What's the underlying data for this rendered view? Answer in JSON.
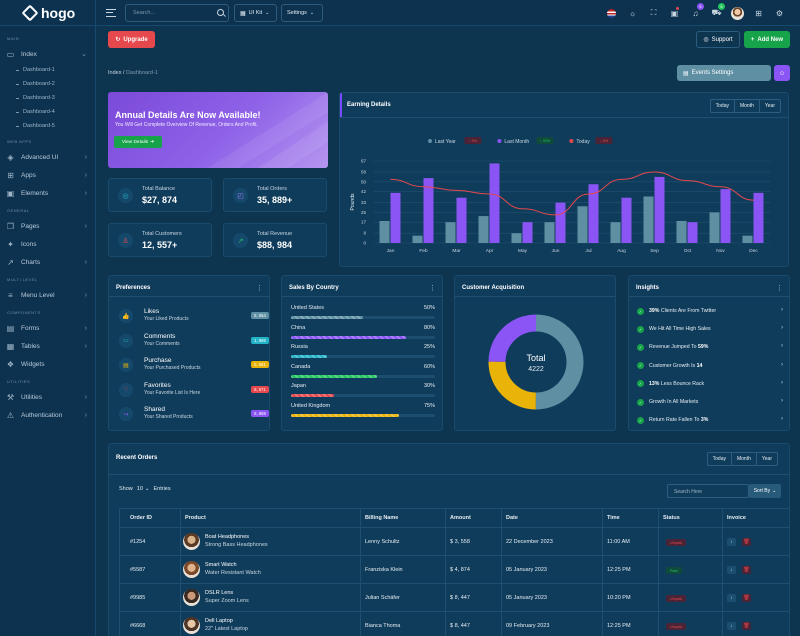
{
  "brand": {
    "name": "hogo"
  },
  "sidebar": {
    "sections": {
      "main": "MAIN",
      "web_apps": "WEB APPS",
      "general": "GENERAL",
      "multi_level": "MULTI LEVEL",
      "components": "COMPONENTS",
      "utilities": "UTILITIES"
    },
    "index": "Index",
    "sub": [
      "Dashboard-1",
      "Dashboard-2",
      "Dashboard-3",
      "Dashboard-4",
      "Dashboard-5"
    ],
    "advanced_ui": "Advanced UI",
    "apps": "Apps",
    "elements": "Elements",
    "pages": "Pages",
    "icons": "Icons",
    "charts": "Charts",
    "menu_level": "Menu Level",
    "forms": "Forms",
    "tables": "Tables",
    "widgets": "Widgets",
    "utilities": "Utilities",
    "authentication": "Authentication"
  },
  "header": {
    "search_placeholder": "Search...",
    "ui_kit": "UI Kit",
    "settings": "Settings",
    "notif_count": "5",
    "cart_count": "5"
  },
  "toolbar": {
    "upgrade": "Upgrade",
    "support": "Support",
    "add_new": "Add New",
    "events_settings": "Events Settings"
  },
  "breadcrumb": {
    "root": "Index",
    "sep": "/",
    "current": "Dashboard-1"
  },
  "promo": {
    "title": "Annual Details Are Now Available!",
    "subtitle": "You Will Get Complete Overview Of Revenue, Orders And Profit.",
    "button": "View Details"
  },
  "stats": [
    {
      "label": "Total Balance",
      "value": "$27, 874",
      "icon": "wallet-icon",
      "color": "#22b3c7"
    },
    {
      "label": "Total Orders",
      "value": "35, 889+",
      "icon": "bag-icon",
      "color": "#a77bff"
    },
    {
      "label": "Total Customers",
      "value": "12, 557+",
      "icon": "users-icon",
      "color": "#e5484d"
    },
    {
      "label": "Total Revenue",
      "value": "$88, 984",
      "icon": "trend-icon",
      "color": "#22c55e"
    }
  ],
  "earning": {
    "title": "Earning Details",
    "ranges": [
      "Today",
      "Month",
      "Year"
    ]
  },
  "chart_data": {
    "type": "bar",
    "title": "",
    "ylabel": "Pounds",
    "xlabel": "",
    "ylim": [
      0,
      67
    ],
    "yticks": [
      "0",
      "8",
      "17",
      "25",
      "33",
      "42",
      "50",
      "58",
      "67"
    ],
    "categories": [
      "Jan",
      "Feb",
      "Mar",
      "Apr",
      "May",
      "Jun",
      "Jul",
      "Aug",
      "Sep",
      "Oct",
      "Nov",
      "Dec"
    ],
    "legend_position": "top",
    "grid": true,
    "series": [
      {
        "name": "Last Year",
        "type": "bar",
        "color": "#5e8fa3",
        "values": [
          18,
          6,
          17,
          22,
          8,
          17,
          30,
          17,
          38,
          18,
          25,
          6
        ],
        "change": "5%",
        "change_color": "#e5484d"
      },
      {
        "name": "Last Month",
        "type": "bar",
        "color": "#8b55f5",
        "values": [
          41,
          53,
          37,
          65,
          17,
          33,
          48,
          37,
          54,
          17,
          44,
          41
        ],
        "change": "33%",
        "change_color": "#22c55e"
      },
      {
        "name": "Today",
        "type": "line",
        "color": "#e5484d",
        "values": [
          52,
          46,
          43,
          40,
          28,
          23,
          40,
          52,
          58,
          51,
          46,
          35
        ],
        "change": "5%",
        "change_color": "#e5484d"
      }
    ]
  },
  "preferences": {
    "title": "Preferences",
    "items": [
      {
        "title": "Likes",
        "sub": "Your Liked Products",
        "badge": "5, 554",
        "color": "#5e8fa3",
        "icon": "thumbs-up-icon"
      },
      {
        "title": "Comments",
        "sub": "Your Comments",
        "badge": "1, 886",
        "color": "#22b3c7",
        "icon": "comment-icon"
      },
      {
        "title": "Purchase",
        "sub": "Your Purchased Products",
        "badge": "5, 561",
        "color": "#eab308",
        "icon": "cart-icon"
      },
      {
        "title": "Favorites",
        "sub": "Your Favorite List Is Here",
        "badge": "5, 571",
        "color": "#e5484d",
        "icon": "heart-icon"
      },
      {
        "title": "Shared",
        "sub": "Your Shared Products",
        "badge": "5, 869",
        "color": "#8b55f5",
        "icon": "share-icon"
      }
    ]
  },
  "countries": {
    "title": "Sales By Country",
    "items": [
      {
        "name": "United States",
        "pct": "50%",
        "value": 0.5,
        "color": "#5e8fa3"
      },
      {
        "name": "China",
        "pct": "80%",
        "value": 0.8,
        "color": "#8b55f5"
      },
      {
        "name": "Russia",
        "pct": "25%",
        "value": 0.25,
        "color": "#22b3c7"
      },
      {
        "name": "Canada",
        "pct": "60%",
        "value": 0.6,
        "color": "#22c55e"
      },
      {
        "name": "Japan",
        "pct": "30%",
        "value": 0.3,
        "color": "#e5484d"
      },
      {
        "name": "United Kingdom",
        "pct": "75%",
        "value": 0.75,
        "color": "#eab308"
      }
    ]
  },
  "acquisition": {
    "title": "Customer Acquisition",
    "total_label": "Total",
    "total_value": "4222",
    "segments": [
      {
        "value": 0.5,
        "color": "#5e8fa3"
      },
      {
        "value": 0.25,
        "color": "#eab308"
      },
      {
        "value": 0.25,
        "color": "#8b55f5"
      }
    ]
  },
  "insights": {
    "title": "Insights",
    "items": [
      {
        "bold": "39%",
        "text": " Clients Are From Twitter"
      },
      {
        "bold": "",
        "text": "We Hit All Time High Sales"
      },
      {
        "bold": "",
        "text": "Revenue Jumped To ",
        "bold_end": "59%"
      },
      {
        "bold": "",
        "text": "Customer Growth Is ",
        "bold_end": "14"
      },
      {
        "bold": "13%",
        "text": " Less Bounce Rack"
      },
      {
        "bold": "",
        "text": "Growth In All Markets"
      },
      {
        "bold": "",
        "text": "Return Rate Fallen To ",
        "bold_end": "3%"
      }
    ]
  },
  "orders": {
    "title": "Recent Orders",
    "ranges": [
      "Today",
      "Month",
      "Year"
    ],
    "show": "Show",
    "entries_count": "10",
    "entries": "Entries",
    "search_placeholder": "Search Here",
    "sort_by": "Sort By",
    "columns": [
      "Order ID",
      "Product",
      "Billing Name",
      "Amount",
      "Date",
      "Time",
      "Status",
      "Invoice"
    ],
    "rows": [
      {
        "id": "#1254",
        "name": "Boat Headphones",
        "desc": "Strong Bass Headphones",
        "billing": "Lenny Schultz",
        "amount": "$ 3, 558",
        "date": "22 December 2023",
        "time": "11:00 AM",
        "status": "Unpaid",
        "status_color": "#e5484d"
      },
      {
        "id": "#5587",
        "name": "Smart Watch",
        "desc": "Water Resistant Watch",
        "billing": "Franziska Klein",
        "amount": "$ 4, 874",
        "date": "05 January 2023",
        "time": "12:25 PM",
        "status": "Paid",
        "status_color": "#22c55e"
      },
      {
        "id": "#9985",
        "name": "DSLR Lens",
        "desc": "Super Zoom Lens",
        "billing": "Julian Schäfer",
        "amount": "$ 8, 447",
        "date": "05 January 2023",
        "time": "10:20 PM",
        "status": "Unpaid",
        "status_color": "#e5484d"
      },
      {
        "id": "#6668",
        "name": "Dell Laptop",
        "desc": "22\" Latest Laptop",
        "billing": "Bianca Thoma",
        "amount": "$ 8, 447",
        "date": "09 February 2023",
        "time": "12:25 PM",
        "status": "Unpaid",
        "status_color": "#e5484d"
      }
    ]
  }
}
